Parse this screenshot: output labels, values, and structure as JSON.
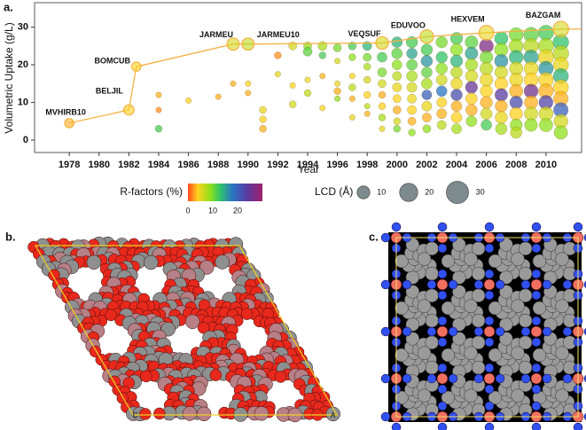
{
  "chart_data": {
    "type": "scatter",
    "xlabel": "Year",
    "ylabel": "Volumetric Uptake (g/L)",
    "xlim": [
      1975.67,
      2012.39
    ],
    "ylim": [
      -3.3,
      36.5
    ],
    "xticks": [
      1978,
      1980,
      1982,
      1984,
      1986,
      1988,
      1990,
      1992,
      1994,
      1996,
      1998,
      2000,
      2002,
      2004,
      2006,
      2008,
      2010
    ],
    "yticks": [
      0,
      10,
      20,
      30
    ],
    "frontier_color": "#f5b041",
    "records": [
      {
        "label": "MVHIRB10",
        "x": 1978,
        "y": 4.5,
        "lcd": 8,
        "r": 3
      },
      {
        "label": "BELJIL",
        "x": 1982,
        "y": 8,
        "lcd": 10,
        "r": 4
      },
      {
        "label": "BOMCUB",
        "x": 1982.5,
        "y": 19.5,
        "lcd": 8,
        "r": 4
      },
      {
        "label": "JARMEU",
        "x": 1989,
        "y": 25.5,
        "lcd": 14,
        "r": 6
      },
      {
        "label": "JARMEU10",
        "x": 1990,
        "y": 25.5,
        "lcd": 14,
        "r": 7
      },
      {
        "label": "VEQSUF",
        "x": 1999,
        "y": 25.8,
        "lcd": 15,
        "r": 6
      },
      {
        "label": "EDUVOO",
        "x": 2002,
        "y": 27.5,
        "lcd": 17,
        "r": 7
      },
      {
        "label": "HEXVEM",
        "x": 2006,
        "y": 28.5,
        "lcd": 20,
        "r": 5
      },
      {
        "label": "BAZGAM",
        "x": 2011,
        "y": 29.5,
        "lcd": 22,
        "r": 6
      }
    ],
    "points": [
      {
        "x": 1984,
        "y": 12,
        "lcd": 2,
        "r": 3
      },
      {
        "x": 1984,
        "y": 8,
        "lcd": 2,
        "r": 2
      },
      {
        "x": 1984,
        "y": 3,
        "lcd": 3,
        "r": 12
      },
      {
        "x": 1986,
        "y": 10.5,
        "lcd": 2,
        "r": 4
      },
      {
        "x": 1988,
        "y": 11.5,
        "lcd": 2,
        "r": 3
      },
      {
        "x": 1989,
        "y": 15,
        "lcd": 2,
        "r": 3
      },
      {
        "x": 1990,
        "y": 15,
        "lcd": 2,
        "r": 4
      },
      {
        "x": 1990,
        "y": 12.5,
        "lcd": 2,
        "r": 3
      },
      {
        "x": 1991,
        "y": 8,
        "lcd": 3,
        "r": 5
      },
      {
        "x": 1991,
        "y": 5.5,
        "lcd": 3,
        "r": 4
      },
      {
        "x": 1991,
        "y": 3,
        "lcd": 3,
        "r": 3
      },
      {
        "x": 1992,
        "y": 22.5,
        "lcd": 3,
        "r": 2
      },
      {
        "x": 1992,
        "y": 17.5,
        "lcd": 2,
        "r": 5
      },
      {
        "x": 1993,
        "y": 25,
        "lcd": 4,
        "r": 6
      },
      {
        "x": 1993,
        "y": 14.5,
        "lcd": 2,
        "r": 4
      },
      {
        "x": 1993,
        "y": 9.5,
        "lcd": 3,
        "r": 6
      },
      {
        "x": 1994,
        "y": 25,
        "lcd": 4,
        "r": 9
      },
      {
        "x": 1994,
        "y": 23.5,
        "lcd": 5,
        "r": 11
      },
      {
        "x": 1994,
        "y": 16,
        "lcd": 2,
        "r": 5
      },
      {
        "x": 1994,
        "y": 12.5,
        "lcd": 3,
        "r": 7
      },
      {
        "x": 1995,
        "y": 25,
        "lcd": 5,
        "r": 8
      },
      {
        "x": 1995,
        "y": 22.5,
        "lcd": 3,
        "r": 12
      },
      {
        "x": 1995,
        "y": 17,
        "lcd": 2,
        "r": 3
      },
      {
        "x": 1995,
        "y": 8.5,
        "lcd": 2,
        "r": 4
      },
      {
        "x": 1996,
        "y": 24.5,
        "lcd": 4,
        "r": 10
      },
      {
        "x": 1996,
        "y": 21,
        "lcd": 2,
        "r": 6
      },
      {
        "x": 1996,
        "y": 15,
        "lcd": 2,
        "r": 5
      },
      {
        "x": 1996,
        "y": 13,
        "lcd": 3,
        "r": 3
      },
      {
        "x": 1996,
        "y": 11,
        "lcd": 2,
        "r": 9
      },
      {
        "x": 1997,
        "y": 25,
        "lcd": 4,
        "r": 12
      },
      {
        "x": 1997,
        "y": 22,
        "lcd": 3,
        "r": 9
      },
      {
        "x": 1997,
        "y": 17,
        "lcd": 2,
        "r": 4
      },
      {
        "x": 1997,
        "y": 14,
        "lcd": 3,
        "r": 7
      },
      {
        "x": 1997,
        "y": 11,
        "lcd": 2,
        "r": 3
      },
      {
        "x": 1997,
        "y": 6,
        "lcd": 2,
        "r": 5
      },
      {
        "x": 1998,
        "y": 25,
        "lcd": 5,
        "r": 14
      },
      {
        "x": 1998,
        "y": 22,
        "lcd": 4,
        "r": 10
      },
      {
        "x": 1998,
        "y": 19.5,
        "lcd": 3,
        "r": 8
      },
      {
        "x": 1998,
        "y": 16,
        "lcd": 3,
        "r": 6
      },
      {
        "x": 1998,
        "y": 12,
        "lcd": 3,
        "r": 4
      },
      {
        "x": 1998,
        "y": 9,
        "lcd": 2,
        "r": 7
      },
      {
        "x": 1998,
        "y": 7,
        "lcd": 2,
        "r": 3
      },
      {
        "x": 1999,
        "y": 22,
        "lcd": 6,
        "r": 12
      },
      {
        "x": 1999,
        "y": 18,
        "lcd": 5,
        "r": 10
      },
      {
        "x": 1999,
        "y": 15,
        "lcd": 4,
        "r": 6
      },
      {
        "x": 1999,
        "y": 12,
        "lcd": 3,
        "r": 3
      },
      {
        "x": 1999,
        "y": 9,
        "lcd": 3,
        "r": 4
      },
      {
        "x": 1999,
        "y": 6,
        "lcd": 3,
        "r": 8
      },
      {
        "x": 1999,
        "y": 3,
        "lcd": 2,
        "r": 5
      },
      {
        "x": 2000,
        "y": 26,
        "lcd": 7,
        "r": 14
      },
      {
        "x": 2000,
        "y": 23,
        "lcd": 7,
        "r": 11
      },
      {
        "x": 2000,
        "y": 20,
        "lcd": 6,
        "r": 9
      },
      {
        "x": 2000,
        "y": 17,
        "lcd": 5,
        "r": 7
      },
      {
        "x": 2000,
        "y": 14,
        "lcd": 5,
        "r": 5
      },
      {
        "x": 2000,
        "y": 11,
        "lcd": 4,
        "r": 4
      },
      {
        "x": 2000,
        "y": 8,
        "lcd": 4,
        "r": 3
      },
      {
        "x": 2000,
        "y": 5,
        "lcd": 3,
        "r": 6
      },
      {
        "x": 2000,
        "y": 3,
        "lcd": 3,
        "r": 10
      },
      {
        "x": 2001,
        "y": 26,
        "lcd": 8,
        "r": 12
      },
      {
        "x": 2001,
        "y": 23,
        "lcd": 7,
        "r": 15
      },
      {
        "x": 2001,
        "y": 20,
        "lcd": 7,
        "r": 11
      },
      {
        "x": 2001,
        "y": 17,
        "lcd": 7,
        "r": 8
      },
      {
        "x": 2001,
        "y": 14,
        "lcd": 6,
        "r": 6
      },
      {
        "x": 2001,
        "y": 11,
        "lcd": 5,
        "r": 5
      },
      {
        "x": 2001,
        "y": 8,
        "lcd": 5,
        "r": 4
      },
      {
        "x": 2001,
        "y": 5,
        "lcd": 4,
        "r": 3
      },
      {
        "x": 2001,
        "y": 2,
        "lcd": 3,
        "r": 9
      },
      {
        "x": 2002,
        "y": 24,
        "lcd": 8,
        "r": 12
      },
      {
        "x": 2002,
        "y": 21,
        "lcd": 8,
        "r": 16
      },
      {
        "x": 2002,
        "y": 18,
        "lcd": 7,
        "r": 11
      },
      {
        "x": 2002,
        "y": 15,
        "lcd": 7,
        "r": 8
      },
      {
        "x": 2002,
        "y": 12,
        "lcd": 6,
        "r": 20
      },
      {
        "x": 2002,
        "y": 9,
        "lcd": 6,
        "r": 5
      },
      {
        "x": 2002,
        "y": 6,
        "lcd": 5,
        "r": 3
      },
      {
        "x": 2002,
        "y": 3,
        "lcd": 4,
        "r": 9
      },
      {
        "x": 2003,
        "y": 26,
        "lcd": 8,
        "r": 10
      },
      {
        "x": 2003,
        "y": 22,
        "lcd": 8,
        "r": 13
      },
      {
        "x": 2003,
        "y": 19,
        "lcd": 8,
        "r": 9
      },
      {
        "x": 2003,
        "y": 16,
        "lcd": 7,
        "r": 6
      },
      {
        "x": 2003,
        "y": 13,
        "lcd": 7,
        "r": 18
      },
      {
        "x": 2003,
        "y": 10,
        "lcd": 6,
        "r": 4
      },
      {
        "x": 2003,
        "y": 7,
        "lcd": 6,
        "r": 3
      },
      {
        "x": 2003,
        "y": 4,
        "lcd": 5,
        "r": 7
      },
      {
        "x": 2004,
        "y": 27,
        "lcd": 9,
        "r": 12
      },
      {
        "x": 2004,
        "y": 24,
        "lcd": 9,
        "r": 9
      },
      {
        "x": 2004,
        "y": 21,
        "lcd": 9,
        "r": 14
      },
      {
        "x": 2004,
        "y": 18,
        "lcd": 8,
        "r": 7
      },
      {
        "x": 2004,
        "y": 15,
        "lcd": 8,
        "r": 5
      },
      {
        "x": 2004,
        "y": 12,
        "lcd": 8,
        "r": 22
      },
      {
        "x": 2004,
        "y": 9,
        "lcd": 7,
        "r": 3
      },
      {
        "x": 2004,
        "y": 6,
        "lcd": 7,
        "r": 4
      },
      {
        "x": 2004,
        "y": 3,
        "lcd": 6,
        "r": 8
      },
      {
        "x": 2005,
        "y": 26,
        "lcd": 10,
        "r": 11
      },
      {
        "x": 2005,
        "y": 23,
        "lcd": 10,
        "r": 15
      },
      {
        "x": 2005,
        "y": 20,
        "lcd": 9,
        "r": 8
      },
      {
        "x": 2005,
        "y": 17,
        "lcd": 9,
        "r": 6
      },
      {
        "x": 2005,
        "y": 14,
        "lcd": 9,
        "r": 25
      },
      {
        "x": 2005,
        "y": 11,
        "lcd": 8,
        "r": 4
      },
      {
        "x": 2005,
        "y": 8,
        "lcd": 8,
        "r": 3
      },
      {
        "x": 2005,
        "y": 5,
        "lcd": 7,
        "r": 9
      },
      {
        "x": 2006,
        "y": 25,
        "lcd": 12,
        "r": 27
      },
      {
        "x": 2006,
        "y": 22,
        "lcd": 10,
        "r": 10
      },
      {
        "x": 2006,
        "y": 19,
        "lcd": 10,
        "r": 7
      },
      {
        "x": 2006,
        "y": 16,
        "lcd": 10,
        "r": 5
      },
      {
        "x": 2006,
        "y": 13,
        "lcd": 9,
        "r": 4
      },
      {
        "x": 2006,
        "y": 10,
        "lcd": 9,
        "r": 3
      },
      {
        "x": 2006,
        "y": 7,
        "lcd": 8,
        "r": 6
      },
      {
        "x": 2006,
        "y": 4,
        "lcd": 7,
        "r": 12
      },
      {
        "x": 2007,
        "y": 27,
        "lcd": 11,
        "r": 13
      },
      {
        "x": 2007,
        "y": 24,
        "lcd": 11,
        "r": 9
      },
      {
        "x": 2007,
        "y": 21,
        "lcd": 11,
        "r": 16
      },
      {
        "x": 2007,
        "y": 18,
        "lcd": 10,
        "r": 6
      },
      {
        "x": 2007,
        "y": 15,
        "lcd": 10,
        "r": 4
      },
      {
        "x": 2007,
        "y": 12,
        "lcd": 10,
        "r": 24
      },
      {
        "x": 2007,
        "y": 9,
        "lcd": 9,
        "r": 3
      },
      {
        "x": 2007,
        "y": 6,
        "lcd": 9,
        "r": 5
      },
      {
        "x": 2007,
        "y": 3,
        "lcd": 8,
        "r": 8
      },
      {
        "x": 2008,
        "y": 28,
        "lcd": 12,
        "r": 10
      },
      {
        "x": 2008,
        "y": 25,
        "lcd": 12,
        "r": 8
      },
      {
        "x": 2008,
        "y": 22,
        "lcd": 12,
        "r": 14
      },
      {
        "x": 2008,
        "y": 19,
        "lcd": 11,
        "r": 6
      },
      {
        "x": 2008,
        "y": 16,
        "lcd": 11,
        "r": 5
      },
      {
        "x": 2008,
        "y": 13,
        "lcd": 11,
        "r": 3
      },
      {
        "x": 2008,
        "y": 10,
        "lcd": 10,
        "r": 22
      },
      {
        "x": 2008,
        "y": 7,
        "lcd": 10,
        "r": 4
      },
      {
        "x": 2008,
        "y": 4,
        "lcd": 9,
        "r": 9
      },
      {
        "x": 2008,
        "y": 2,
        "lcd": 8,
        "r": 7
      },
      {
        "x": 2009,
        "y": 28,
        "lcd": 13,
        "r": 11
      },
      {
        "x": 2009,
        "y": 25,
        "lcd": 13,
        "r": 7
      },
      {
        "x": 2009,
        "y": 22,
        "lcd": 13,
        "r": 15
      },
      {
        "x": 2009,
        "y": 19,
        "lcd": 12,
        "r": 5
      },
      {
        "x": 2009,
        "y": 16,
        "lcd": 12,
        "r": 4
      },
      {
        "x": 2009,
        "y": 13,
        "lcd": 12,
        "r": 26
      },
      {
        "x": 2009,
        "y": 10,
        "lcd": 11,
        "r": 3
      },
      {
        "x": 2009,
        "y": 7,
        "lcd": 11,
        "r": 6
      },
      {
        "x": 2009,
        "y": 4,
        "lcd": 10,
        "r": 9
      },
      {
        "x": 2010,
        "y": 28.5,
        "lcd": 14,
        "r": 12
      },
      {
        "x": 2010,
        "y": 25,
        "lcd": 14,
        "r": 8
      },
      {
        "x": 2010,
        "y": 22,
        "lcd": 14,
        "r": 5
      },
      {
        "x": 2010,
        "y": 19,
        "lcd": 13,
        "r": 16
      },
      {
        "x": 2010,
        "y": 16,
        "lcd": 13,
        "r": 4
      },
      {
        "x": 2010,
        "y": 13,
        "lcd": 13,
        "r": 3
      },
      {
        "x": 2010,
        "y": 10,
        "lcd": 12,
        "r": 23
      },
      {
        "x": 2010,
        "y": 7,
        "lcd": 12,
        "r": 6
      },
      {
        "x": 2010,
        "y": 4,
        "lcd": 11,
        "r": 9
      },
      {
        "x": 2011,
        "y": 26,
        "lcd": 15,
        "r": 13
      },
      {
        "x": 2011,
        "y": 23,
        "lcd": 15,
        "r": 7
      },
      {
        "x": 2011,
        "y": 20,
        "lcd": 14,
        "r": 5
      },
      {
        "x": 2011,
        "y": 17,
        "lcd": 14,
        "r": 14
      },
      {
        "x": 2011,
        "y": 14,
        "lcd": 14,
        "r": 4
      },
      {
        "x": 2011,
        "y": 11,
        "lcd": 13,
        "r": 3
      },
      {
        "x": 2011,
        "y": 8,
        "lcd": 13,
        "r": 20
      },
      {
        "x": 2011,
        "y": 5,
        "lcd": 12,
        "r": 6
      },
      {
        "x": 2011,
        "y": 2,
        "lcd": 11,
        "r": 9
      }
    ],
    "colorbar": {
      "label": "R-factors (%)",
      "lim": [
        0,
        30
      ],
      "ticks": [
        0,
        10,
        20
      ],
      "colormap": [
        [
          0,
          "#ff4a1c"
        ],
        [
          4,
          "#ffd21e"
        ],
        [
          9,
          "#8fe01c"
        ],
        [
          13,
          "#2fc46a"
        ],
        [
          18,
          "#2a74c4"
        ],
        [
          24,
          "#5b3aa0"
        ],
        [
          30,
          "#a0206a"
        ]
      ]
    },
    "size_legend": {
      "label": "LCD (Å)",
      "values": [
        10,
        20,
        30
      ]
    }
  },
  "panel_labels": [
    "a.",
    "b.",
    "c."
  ],
  "panel_b_axis_labels": [
    "C",
    "A"
  ]
}
